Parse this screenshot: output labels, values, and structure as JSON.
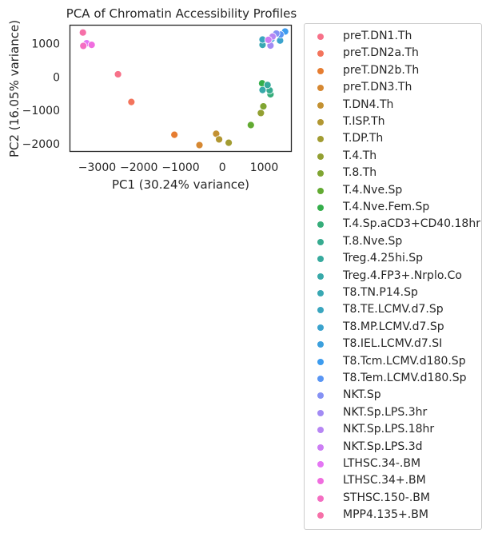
{
  "chart_data": {
    "type": "scatter",
    "title": "PCA of Chromatin Accessibility Profiles",
    "xlabel": "PC1 (30.24% variance)",
    "ylabel": "PC2 (16.05% variance)",
    "xlim": [
      -3650,
      1650
    ],
    "ylim": [
      -2230,
      1550
    ],
    "x_ticks": [
      {
        "value": -3000,
        "label": "−3000"
      },
      {
        "value": -2000,
        "label": "−2000"
      },
      {
        "value": -1000,
        "label": "−1000"
      },
      {
        "value": 0,
        "label": "0"
      },
      {
        "value": 1000,
        "label": "1000"
      }
    ],
    "y_ticks": [
      {
        "value": -2000,
        "label": "−2000"
      },
      {
        "value": -1000,
        "label": "−1000"
      },
      {
        "value": 0,
        "label": "0"
      },
      {
        "value": 1000,
        "label": "1000"
      }
    ],
    "grid": false,
    "legend_placement": "outside-right",
    "series": [
      {
        "name": "preT.DN1.Th",
        "color": "#f77189",
        "points": [
          [
            -2500,
            80
          ]
        ]
      },
      {
        "name": "preT.DN2a.Th",
        "color": "#f3745c",
        "points": [
          [
            -2180,
            -750
          ]
        ]
      },
      {
        "name": "preT.DN2b.Th",
        "color": "#e67d31",
        "points": [
          [
            -1150,
            -1730
          ]
        ]
      },
      {
        "name": "preT.DN3.Th",
        "color": "#d68832",
        "points": [
          [
            -550,
            -2040
          ]
        ]
      },
      {
        "name": "T.DN4.Th",
        "color": "#c39132",
        "points": [
          [
            -150,
            -1700
          ]
        ]
      },
      {
        "name": "T.ISP.Th",
        "color": "#b29732",
        "points": [
          [
            -80,
            -1870
          ]
        ]
      },
      {
        "name": "T.DP.Th",
        "color": "#a29c32",
        "points": [
          [
            150,
            -1970
          ]
        ]
      },
      {
        "name": "T.4.Th",
        "color": "#93a032",
        "points": [
          [
            920,
            -1080
          ]
        ]
      },
      {
        "name": "T.8.Th",
        "color": "#80a532",
        "points": [
          [
            980,
            -880
          ]
        ]
      },
      {
        "name": "T.4.Nve.Sp",
        "color": "#62aa32",
        "points": [
          [
            680,
            -1440
          ]
        ]
      },
      {
        "name": "T.4.Nve.Fem.Sp",
        "color": "#35ae4b",
        "points": [
          [
            950,
            -190
          ]
        ]
      },
      {
        "name": "T.4.Sp.aCD3+CD40.18hr",
        "color": "#36ad7a",
        "points": [
          [
            1150,
            -520
          ]
        ]
      },
      {
        "name": "T.8.Nve.Sp",
        "color": "#37ab90",
        "points": [
          [
            1130,
            -400
          ]
        ]
      },
      {
        "name": "Treg.4.25hi.Sp",
        "color": "#37aa9e",
        "points": [
          [
            1080,
            -240
          ]
        ]
      },
      {
        "name": "Treg.4.FP3+.Nrplo.Co",
        "color": "#38a9a9",
        "points": [
          [
            960,
            -390
          ]
        ]
      },
      {
        "name": "T8.TN.P14.Sp",
        "color": "#39a8b3",
        "points": [
          [
            960,
            960
          ]
        ]
      },
      {
        "name": "T8.TE.LCMV.d7.Sp",
        "color": "#3aa6bf",
        "points": [
          [
            960,
            1120
          ]
        ]
      },
      {
        "name": "T8.MP.LCMV.d7.Sp",
        "color": "#3ba3cd",
        "points": [
          [
            1380,
            1090
          ]
        ]
      },
      {
        "name": "T8.IEL.LCMV.d7.SI",
        "color": "#3ca0dd",
        "points": [
          [
            1180,
            1140
          ]
        ]
      },
      {
        "name": "T8.Tcm.LCMV.d180.Sp",
        "color": "#3c9cef",
        "points": [
          [
            1500,
            1360
          ]
        ]
      },
      {
        "name": "T8.Tem.LCMV.d180.Sp",
        "color": "#5996f4",
        "points": [
          [
            1390,
            1270
          ]
        ]
      },
      {
        "name": "NKT.Sp",
        "color": "#8591f4",
        "points": [
          [
            1290,
            1300
          ]
        ]
      },
      {
        "name": "NKT.Sp.LPS.3hr",
        "color": "#a28bf4",
        "points": [
          [
            1150,
            940
          ]
        ]
      },
      {
        "name": "NKT.Sp.LPS.18hr",
        "color": "#b786f4",
        "points": [
          [
            1200,
            1210
          ]
        ]
      },
      {
        "name": "NKT.Sp.LPS.3d",
        "color": "#cc7ef4",
        "points": [
          [
            1100,
            1110
          ]
        ]
      },
      {
        "name": "LTHSC.34-.BM",
        "color": "#e476f4",
        "points": [
          [
            -3250,
            1010
          ]
        ]
      },
      {
        "name": "LTHSC.34+.BM",
        "color": "#f06ddf",
        "points": [
          [
            -3130,
            960
          ]
        ]
      },
      {
        "name": "STHSC.150-.BM",
        "color": "#f46ec2",
        "points": [
          [
            -3330,
            930
          ]
        ]
      },
      {
        "name": "MPP4.135+.BM",
        "color": "#f670a8",
        "points": [
          [
            -3340,
            1330
          ]
        ]
      }
    ]
  }
}
